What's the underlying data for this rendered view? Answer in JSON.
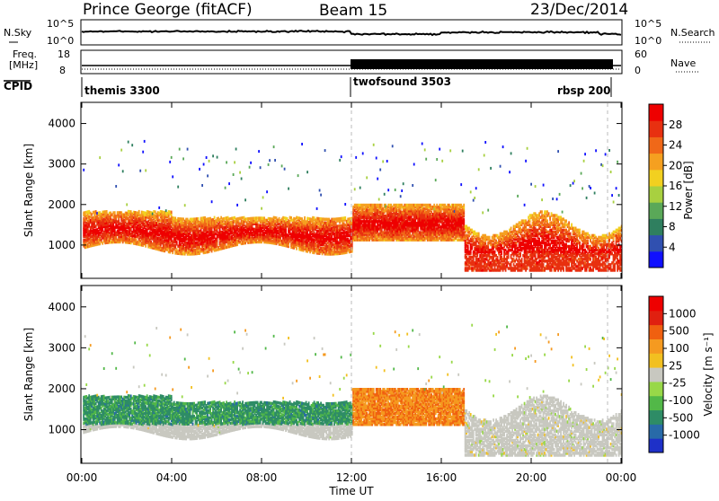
{
  "header": {
    "station": "Prince George (fitACF)",
    "beam": "Beam 15",
    "date": "23/Dec/2014"
  },
  "top_panels": {
    "nsky_label": "N.Sky",
    "nsky_ticks": [
      "10^5",
      "10^0"
    ],
    "nsearch_label": "N.Search",
    "freq_label": "Freq.",
    "freq_unit": "[MHz]",
    "freq_ticks": [
      "18",
      "8"
    ],
    "nave_label": "Nave",
    "nave_ticks": [
      "60",
      "0"
    ],
    "cpid_label": "CPID"
  },
  "cpid_segments": [
    {
      "label": "themis 3300",
      "start_hour": 0
    },
    {
      "label": "twofsound 3503",
      "start_hour": 12
    },
    {
      "label": "rbsp 200",
      "start_hour": 23.4
    }
  ],
  "chart_data": [
    {
      "type": "heatmap",
      "panel": "power",
      "ylabel": "Slant Range [km]",
      "xlabel": "",
      "xlim": [
        0,
        24
      ],
      "ylim": [
        200,
        4500
      ],
      "yticks": [
        "1000",
        "2000",
        "3000",
        "4000"
      ],
      "colorbar": {
        "label": "Power [dB]",
        "ticks": [
          "4",
          "8",
          "12",
          "16",
          "20",
          "24",
          "28"
        ],
        "colors": [
          "#1010ff",
          "#3050b0",
          "#2f7f5f",
          "#5aa858",
          "#a8d040",
          "#f2d020",
          "#f5a020",
          "#f06818",
          "#e83010",
          "#ee0000"
        ]
      }
    },
    {
      "type": "heatmap",
      "panel": "velocity",
      "ylabel": "Slant Range [km]",
      "xlabel": "Time UT",
      "xlim": [
        0,
        24
      ],
      "ylim": [
        200,
        4500
      ],
      "yticks": [
        "1000",
        "2000",
        "3000",
        "4000"
      ],
      "xticks": [
        "00:00",
        "04:00",
        "08:00",
        "12:00",
        "16:00",
        "20:00",
        "00:00"
      ],
      "colorbar": {
        "label": "Velocity [m s⁻¹]",
        "ticks": [
          "1000",
          "500",
          "100",
          "25",
          "-25",
          "-100",
          "-500",
          "-1000"
        ],
        "colors": [
          "#1e30c8",
          "#286aa8",
          "#2e8c66",
          "#52b848",
          "#98d848",
          "#c8c8c0",
          "#f2c020",
          "#f59a20",
          "#f06010",
          "#e02010",
          "#ee0000"
        ]
      }
    }
  ]
}
